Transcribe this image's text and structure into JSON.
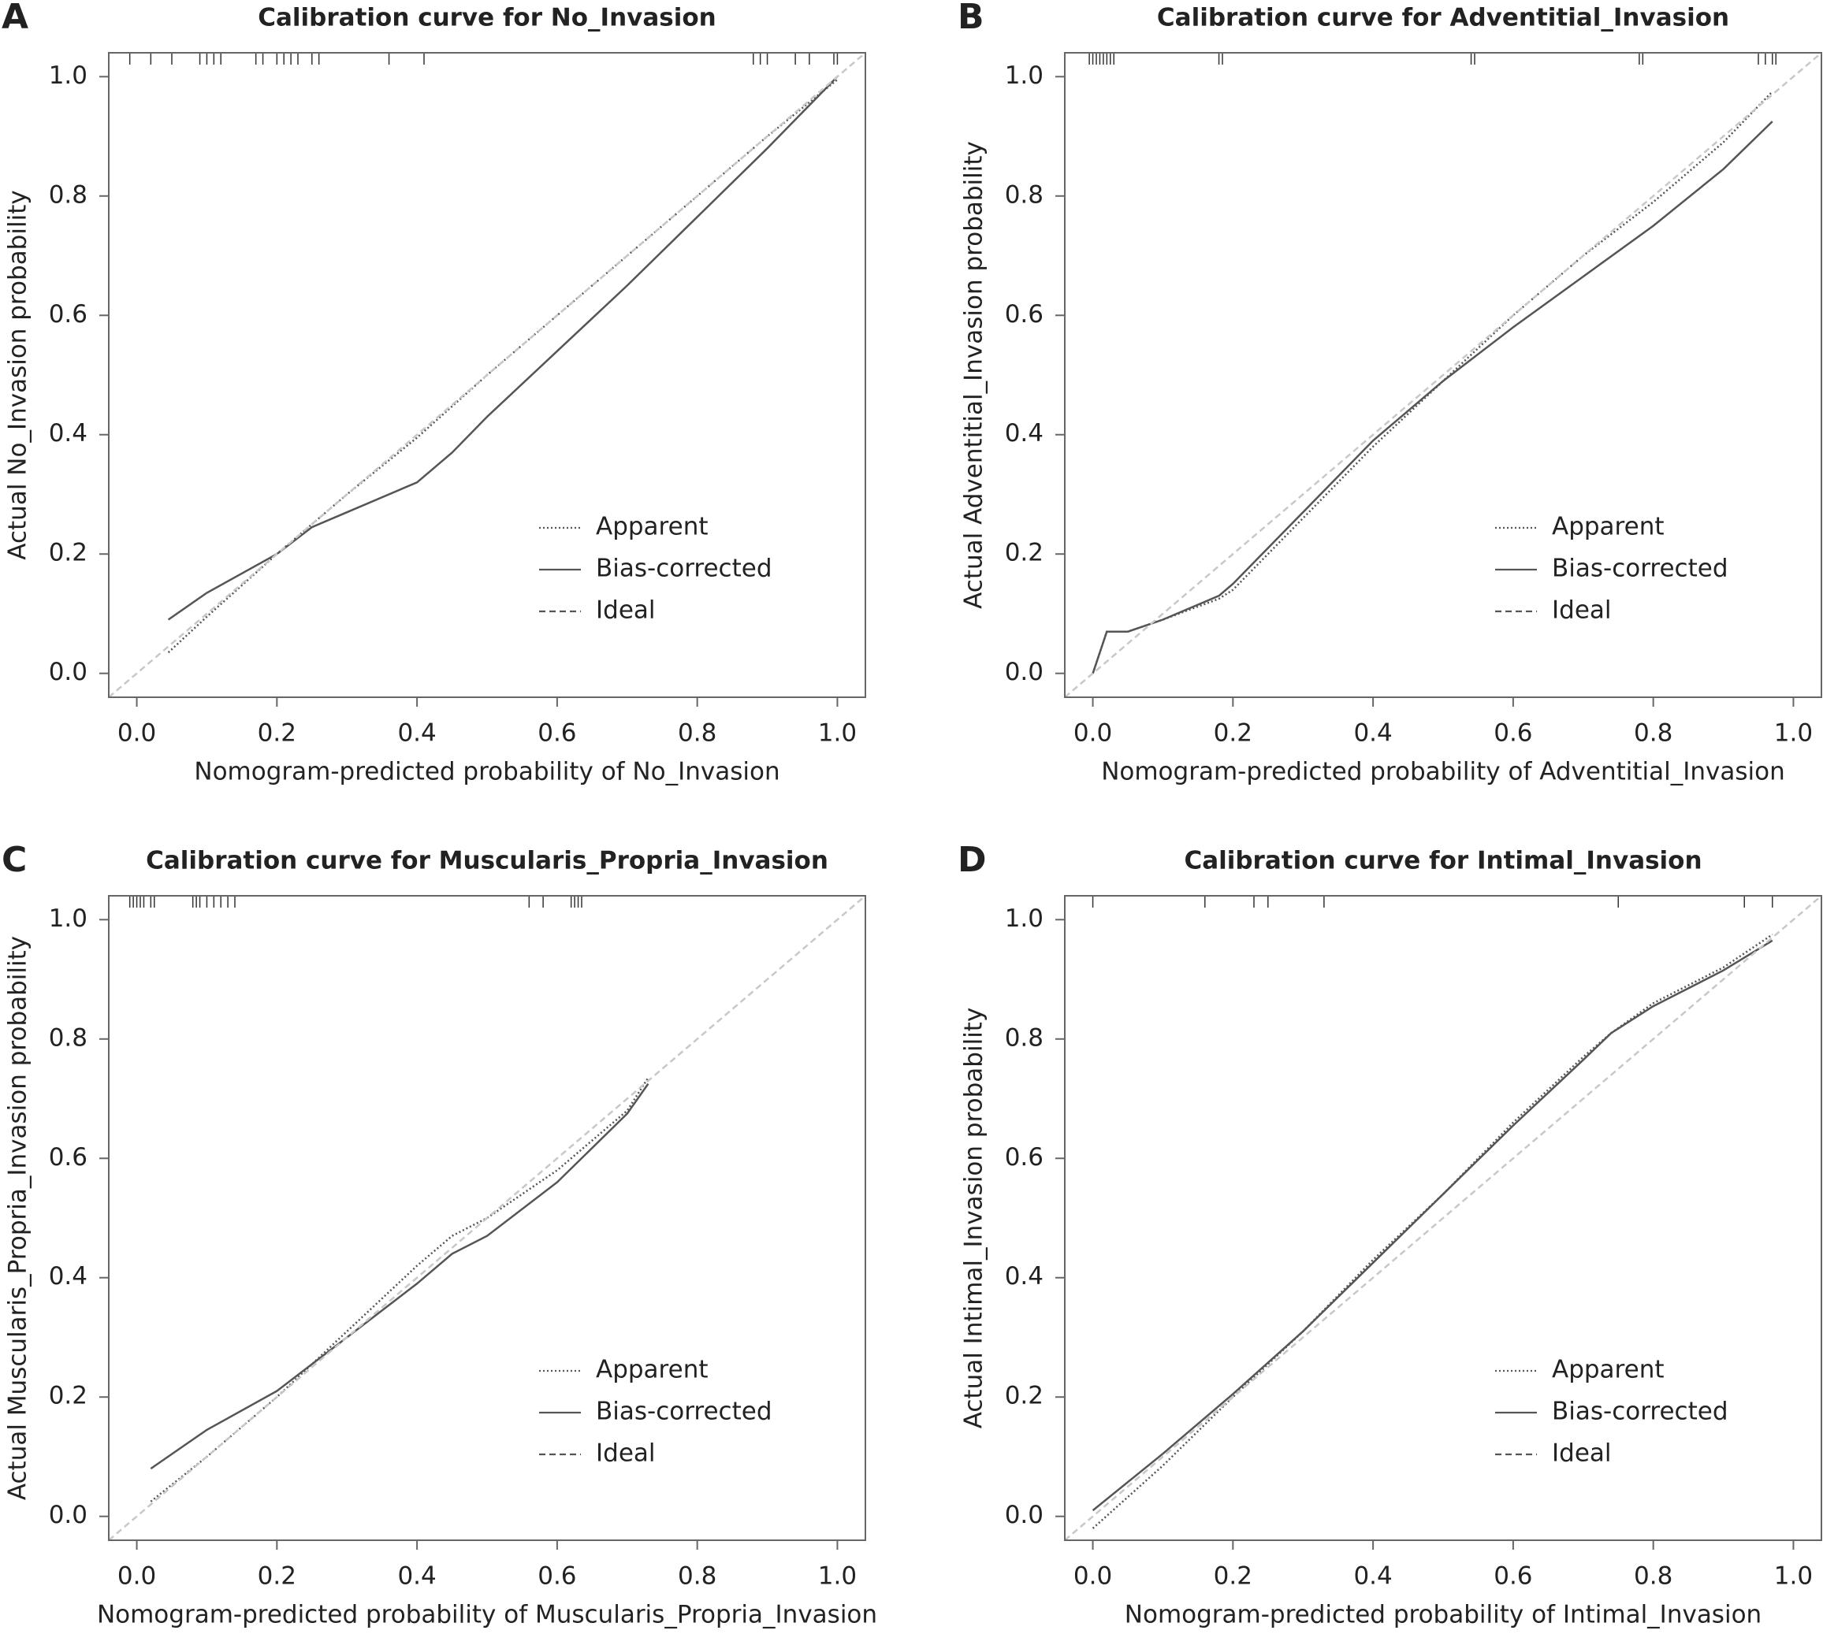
{
  "chart_data": [
    {
      "type": "line",
      "panel": "A",
      "title": "Calibration curve for No_Invasion",
      "xlabel": "Nomogram-predicted probability of No_Invasion",
      "ylabel": "Actual No_Invasion probability",
      "xlim": [
        -0.04,
        1.04
      ],
      "ylim": [
        -0.04,
        1.04
      ],
      "xticks": [
        {
          "value": 0,
          "label": "0.0"
        },
        0.2,
        0.4,
        0.6,
        0.8,
        {
          "value": 1,
          "label": "1.0"
        }
      ],
      "yticks": [
        {
          "value": 0,
          "label": "0.0"
        },
        0.2,
        0.4,
        0.6,
        0.8,
        {
          "value": 1,
          "label": "1.0"
        }
      ],
      "rug": [
        -0.01,
        0.02,
        0.05,
        0.09,
        0.1,
        0.11,
        0.12,
        0.17,
        0.18,
        0.2,
        0.21,
        0.22,
        0.23,
        0.25,
        0.26,
        0.36,
        0.41,
        0.88,
        0.89,
        0.9,
        0.94,
        0.96,
        0.995,
        1.0
      ],
      "series": [
        {
          "name": "Apparent",
          "color": "#555555",
          "dash": "dotted",
          "x": [
            0.045,
            0.1,
            0.2,
            0.3,
            0.4,
            0.5,
            0.6,
            0.7,
            0.8,
            0.9,
            1.0
          ],
          "values": [
            0.035,
            0.095,
            0.2,
            0.3,
            0.395,
            0.5,
            0.6,
            0.7,
            0.8,
            0.9,
            0.995
          ]
        },
        {
          "name": "Bias-corrected",
          "color": "#555555",
          "dash": "solid",
          "x": [
            0.045,
            0.1,
            0.2,
            0.25,
            0.3,
            0.4,
            0.45,
            0.5,
            0.6,
            0.7,
            0.8,
            0.9,
            1.0
          ],
          "values": [
            0.09,
            0.135,
            0.2,
            0.245,
            0.27,
            0.32,
            0.37,
            0.43,
            0.54,
            0.65,
            0.765,
            0.88,
            1.0
          ]
        },
        {
          "name": "Ideal",
          "color": "#c8c8c8",
          "dash": "dashed",
          "x": [
            -0.04,
            1.04
          ],
          "values": [
            -0.04,
            1.04
          ]
        }
      ]
    },
    {
      "type": "line",
      "panel": "B",
      "title": "Calibration curve for Adventitial_Invasion",
      "xlabel": "Nomogram-predicted probability of Adventitial_Invasion",
      "ylabel": "Actual Adventitial_Invasion probability",
      "xlim": [
        -0.04,
        1.04
      ],
      "ylim": [
        -0.04,
        1.04
      ],
      "xticks": [
        {
          "value": 0,
          "label": "0.0"
        },
        0.2,
        0.4,
        0.6,
        0.8,
        {
          "value": 1,
          "label": "1.0"
        }
      ],
      "yticks": [
        {
          "value": 0,
          "label": "0.0"
        },
        0.2,
        0.4,
        0.6,
        0.8,
        {
          "value": 1,
          "label": "1.0"
        }
      ],
      "rug": [
        -0.005,
        0.0,
        0.005,
        0.01,
        0.015,
        0.02,
        0.025,
        0.03,
        0.18,
        0.185,
        0.54,
        0.545,
        0.78,
        0.785,
        0.95,
        0.96,
        0.97,
        0.975
      ],
      "series": [
        {
          "name": "Apparent",
          "color": "#555555",
          "dash": "dotted",
          "x": [
            0,
            0.02,
            0.05,
            0.1,
            0.18,
            0.2,
            0.3,
            0.4,
            0.5,
            0.6,
            0.7,
            0.8,
            0.9,
            0.97
          ],
          "values": [
            0,
            0.07,
            0.07,
            0.09,
            0.125,
            0.14,
            0.26,
            0.38,
            0.49,
            0.6,
            0.7,
            0.79,
            0.89,
            0.975
          ]
        },
        {
          "name": "Bias-corrected",
          "color": "#555555",
          "dash": "solid",
          "x": [
            0,
            0.02,
            0.05,
            0.1,
            0.18,
            0.2,
            0.3,
            0.4,
            0.5,
            0.6,
            0.7,
            0.8,
            0.9,
            0.97
          ],
          "values": [
            0,
            0.07,
            0.07,
            0.09,
            0.13,
            0.15,
            0.27,
            0.39,
            0.49,
            0.58,
            0.665,
            0.75,
            0.845,
            0.925
          ]
        },
        {
          "name": "Ideal",
          "color": "#c8c8c8",
          "dash": "dashed",
          "x": [
            -0.04,
            1.04
          ],
          "values": [
            -0.04,
            1.04
          ]
        }
      ]
    },
    {
      "type": "line",
      "panel": "C",
      "title": "Calibration curve for Muscularis_Propria_Invasion",
      "xlabel": "Nomogram-predicted probability of Muscularis_Propria_Invasion",
      "ylabel": "Actual Muscularis_Propria_Invasion probability",
      "xlim": [
        -0.04,
        1.04
      ],
      "ylim": [
        -0.04,
        1.04
      ],
      "xticks": [
        {
          "value": 0,
          "label": "0.0"
        },
        0.2,
        0.4,
        0.6,
        0.8,
        {
          "value": 1,
          "label": "1.0"
        }
      ],
      "yticks": [
        {
          "value": 0,
          "label": "0.0"
        },
        0.2,
        0.4,
        0.6,
        0.8,
        {
          "value": 1,
          "label": "1.0"
        }
      ],
      "rug": [
        -0.01,
        -0.005,
        0.0,
        0.005,
        0.01,
        0.02,
        0.025,
        0.08,
        0.085,
        0.09,
        0.1,
        0.11,
        0.12,
        0.13,
        0.14,
        0.56,
        0.58,
        0.62,
        0.625,
        0.63,
        0.635
      ],
      "series": [
        {
          "name": "Apparent",
          "color": "#555555",
          "dash": "dotted",
          "x": [
            0.02,
            0.1,
            0.2,
            0.3,
            0.4,
            0.45,
            0.5,
            0.6,
            0.7,
            0.73
          ],
          "values": [
            0.025,
            0.1,
            0.2,
            0.31,
            0.42,
            0.47,
            0.5,
            0.58,
            0.68,
            0.735
          ]
        },
        {
          "name": "Bias-corrected",
          "color": "#555555",
          "dash": "solid",
          "x": [
            0.02,
            0.1,
            0.2,
            0.3,
            0.4,
            0.45,
            0.5,
            0.6,
            0.7,
            0.73
          ],
          "values": [
            0.08,
            0.145,
            0.21,
            0.3,
            0.39,
            0.44,
            0.47,
            0.56,
            0.675,
            0.725
          ]
        },
        {
          "name": "Ideal",
          "color": "#c8c8c8",
          "dash": "dashed",
          "x": [
            -0.04,
            1.04
          ],
          "values": [
            -0.04,
            1.04
          ]
        }
      ]
    },
    {
      "type": "line",
      "panel": "D",
      "title": "Calibration curve for Intimal_Invasion",
      "xlabel": "Nomogram-predicted probability of Intimal_Invasion",
      "ylabel": "Actual Intimal_Invasion probability",
      "xlim": [
        -0.04,
        1.04
      ],
      "ylim": [
        -0.04,
        1.04
      ],
      "xticks": [
        {
          "value": 0,
          "label": "0.0"
        },
        0.2,
        0.4,
        0.6,
        0.8,
        {
          "value": 1,
          "label": "1.0"
        }
      ],
      "yticks": [
        {
          "value": 0,
          "label": "0.0"
        },
        0.2,
        0.4,
        0.6,
        0.8,
        {
          "value": 1,
          "label": "1.0"
        }
      ],
      "rug": [
        0.0,
        0.16,
        0.23,
        0.25,
        0.33,
        0.75,
        0.93,
        0.97
      ],
      "series": [
        {
          "name": "Apparent",
          "color": "#555555",
          "dash": "dotted",
          "x": [
            0,
            0.1,
            0.2,
            0.3,
            0.4,
            0.5,
            0.6,
            0.7,
            0.74,
            0.8,
            0.9,
            0.97
          ],
          "values": [
            -0.02,
            0.085,
            0.2,
            0.31,
            0.43,
            0.54,
            0.66,
            0.77,
            0.81,
            0.86,
            0.92,
            0.975
          ]
        },
        {
          "name": "Bias-corrected",
          "color": "#555555",
          "dash": "solid",
          "x": [
            0,
            0.1,
            0.2,
            0.3,
            0.4,
            0.5,
            0.6,
            0.7,
            0.74,
            0.8,
            0.9,
            0.97
          ],
          "values": [
            0.01,
            0.105,
            0.205,
            0.31,
            0.425,
            0.54,
            0.655,
            0.765,
            0.81,
            0.855,
            0.915,
            0.965
          ]
        },
        {
          "name": "Ideal",
          "color": "#c8c8c8",
          "dash": "dashed",
          "x": [
            -0.04,
            1.04
          ],
          "values": [
            -0.04,
            1.04
          ]
        }
      ]
    }
  ]
}
